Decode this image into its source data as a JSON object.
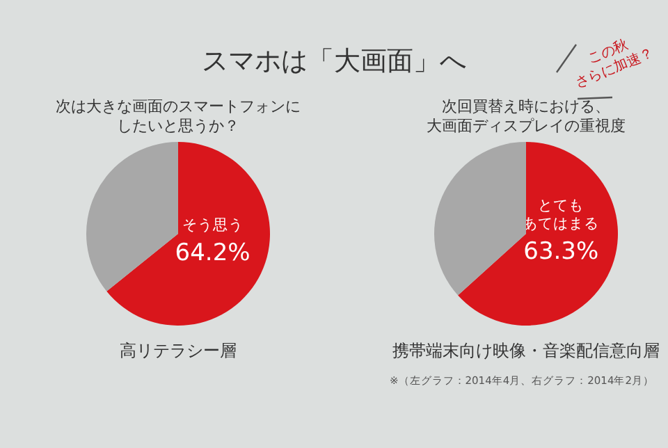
{
  "chart_data": [
    {
      "type": "pie",
      "title": "スマホは「大画面」へ",
      "subtitle": "次は大きな画面のスマートフォンにしたいと思うか？",
      "categories": [
        "そう思う",
        null
      ],
      "values": [
        64.2,
        35.8
      ],
      "colors": [
        "#d9161c",
        "#a8a8a8"
      ],
      "value_labels": [
        "64.2%",
        null
      ],
      "annotations": [
        "高リテラシー層"
      ]
    },
    {
      "type": "pie",
      "subtitle": "次回買替え時における、大画面ディスプレイの重視度",
      "categories": [
        "とてもあてはまる",
        null
      ],
      "values": [
        63.3,
        36.7
      ],
      "colors": [
        "#d9161c",
        "#a8a8a8"
      ],
      "value_labels": [
        "63.3%",
        null
      ],
      "annotations": [
        "携帯端末向け映像・音楽配信意向層",
        "※（左グラフ：2014年4月、右グラフ：2014年2月）",
        "この秋さらに加速？"
      ]
    }
  ]
}
